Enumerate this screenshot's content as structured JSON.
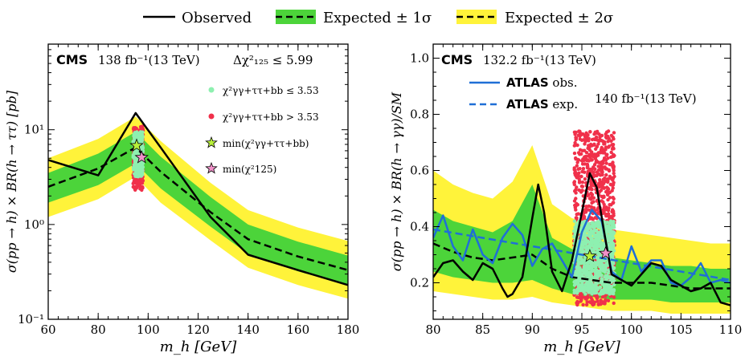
{
  "legend": {
    "observed": "Observed",
    "expected1": "Expected ± 1σ",
    "expected2": "Expected ± 2σ"
  },
  "colors": {
    "observed": "#000000",
    "expected": "#000000",
    "band1": "#4cd43a",
    "band2": "#fff33a",
    "green_points": "#8ef0b0",
    "red_points": "#f0304a",
    "atlas": "#1f6fd6",
    "star_green": "#b8f03a",
    "star_pink": "#f090c8"
  },
  "chart_data": [
    {
      "type": "line",
      "panel": "left",
      "experiment": "CMS",
      "lumi": "138 fb⁻¹(13 TeV)",
      "cut_label": "Δχ²₁₂₅ ≤ 5.99",
      "xlabel": "m_h [GeV]",
      "ylabel": "σ(pp → h) × BR(h → ττ) [pb]",
      "xlim": [
        60,
        180
      ],
      "ylim": [
        0.1,
        80
      ],
      "yscale": "log",
      "xticks": [
        60,
        80,
        100,
        120,
        140,
        160,
        180
      ],
      "yticks": [
        {
          "value": 0.1,
          "label": "10⁻¹"
        },
        {
          "value": 1,
          "label": "10⁰"
        },
        {
          "value": 10,
          "label": "10¹"
        }
      ],
      "legend_entries": [
        "χ²γγ+ττ+bb ≤ 3.53",
        "χ²γγ+ττ+bb > 3.53",
        "min(χ²γγ+ττ+bb)",
        "min(χ²125)"
      ],
      "observed": {
        "x": [
          60,
          80,
          95,
          105,
          125,
          140,
          160,
          180
        ],
        "y": [
          4.8,
          3.3,
          15.0,
          6.5,
          1.2,
          0.48,
          0.33,
          0.23
        ]
      },
      "expected": {
        "x": [
          60,
          80,
          95,
          105,
          125,
          140,
          160,
          180
        ],
        "y": [
          2.5,
          3.9,
          6.5,
          3.6,
          1.35,
          0.7,
          0.46,
          0.33
        ]
      },
      "band1": {
        "lo": [
          1.7,
          2.6,
          4.4,
          2.4,
          0.95,
          0.49,
          0.32,
          0.23
        ],
        "hi": [
          3.5,
          5.6,
          9.5,
          5.2,
          1.95,
          1.0,
          0.66,
          0.47
        ]
      },
      "band2": {
        "lo": [
          1.2,
          1.85,
          3.2,
          1.7,
          0.68,
          0.35,
          0.23,
          0.165
        ],
        "hi": [
          5.0,
          8.0,
          13.8,
          7.6,
          2.75,
          1.42,
          0.93,
          0.67
        ]
      },
      "green_region": {
        "x": [
          94,
          98
        ],
        "y": [
          3.2,
          9.5
        ]
      },
      "red_region": {
        "x": [
          94,
          98
        ],
        "y": [
          2.3,
          11.0
        ]
      },
      "star_min_combined": {
        "x": 95.4,
        "y": 6.8
      },
      "star_min_125": {
        "x": 97.4,
        "y": 5.1
      }
    },
    {
      "type": "line",
      "panel": "right",
      "experiment": "CMS",
      "lumi": "132.2 fb⁻¹(13 TeV)",
      "atlas_lumi": "140 fb⁻¹(13 TeV)",
      "xlabel": "m_h [GeV]",
      "ylabel": "σ(pp → h) × BR(h → γγ)/SM",
      "xlim": [
        80,
        110
      ],
      "ylim": [
        0.07,
        1.05
      ],
      "xticks": [
        80,
        85,
        90,
        95,
        100,
        105,
        110
      ],
      "yticks": [
        0.2,
        0.4,
        0.6,
        0.8,
        1.0
      ],
      "legend_entries": [
        {
          "bold": "ATLAS",
          "rest": " obs."
        },
        {
          "bold": "ATLAS",
          "rest": " exp."
        }
      ],
      "observed": {
        "x": [
          80,
          81,
          82,
          83,
          84,
          85,
          86,
          87,
          87.5,
          88,
          89,
          90,
          90.6,
          91.2,
          92,
          93,
          94,
          95,
          95.8,
          96.5,
          97.3,
          98,
          99,
          100,
          101,
          102,
          103,
          104,
          105,
          106,
          107,
          108,
          109,
          110
        ],
        "y": [
          0.22,
          0.27,
          0.28,
          0.24,
          0.21,
          0.27,
          0.25,
          0.18,
          0.15,
          0.16,
          0.22,
          0.43,
          0.55,
          0.45,
          0.24,
          0.17,
          0.28,
          0.45,
          0.59,
          0.54,
          0.37,
          0.23,
          0.21,
          0.19,
          0.23,
          0.27,
          0.26,
          0.21,
          0.19,
          0.17,
          0.18,
          0.2,
          0.13,
          0.12
        ]
      },
      "expected": {
        "x": [
          80,
          82,
          84,
          86,
          88,
          90,
          92,
          94,
          96,
          98,
          100,
          102,
          104,
          106,
          108,
          110
        ],
        "y": [
          0.34,
          0.31,
          0.29,
          0.28,
          0.29,
          0.3,
          0.25,
          0.22,
          0.21,
          0.2,
          0.2,
          0.2,
          0.19,
          0.18,
          0.18,
          0.18
        ]
      },
      "band1": {
        "lo": [
          0.24,
          0.22,
          0.21,
          0.2,
          0.2,
          0.21,
          0.18,
          0.16,
          0.15,
          0.14,
          0.14,
          0.14,
          0.13,
          0.13,
          0.13,
          0.13
        ],
        "hi": [
          0.46,
          0.42,
          0.4,
          0.38,
          0.42,
          0.55,
          0.36,
          0.32,
          0.3,
          0.29,
          0.28,
          0.27,
          0.26,
          0.26,
          0.25,
          0.25
        ]
      },
      "band2": {
        "lo": [
          0.17,
          0.16,
          0.15,
          0.14,
          0.14,
          0.15,
          0.13,
          0.12,
          0.11,
          0.1,
          0.1,
          0.1,
          0.09,
          0.09,
          0.09,
          0.09
        ],
        "hi": [
          0.6,
          0.55,
          0.52,
          0.5,
          0.56,
          0.69,
          0.48,
          0.43,
          0.41,
          0.39,
          0.38,
          0.37,
          0.36,
          0.35,
          0.34,
          0.34
        ]
      },
      "atlas_obs": {
        "x": [
          80,
          81,
          82,
          83,
          84,
          85,
          86,
          87,
          88,
          89,
          90,
          91,
          92,
          93,
          94,
          95,
          96,
          97,
          98,
          99,
          100,
          101,
          102,
          103,
          104,
          105,
          106,
          107,
          108,
          109,
          110
        ],
        "y": [
          0.36,
          0.44,
          0.33,
          0.28,
          0.39,
          0.3,
          0.27,
          0.36,
          0.41,
          0.37,
          0.26,
          0.32,
          0.34,
          0.28,
          0.22,
          0.38,
          0.46,
          0.42,
          0.24,
          0.21,
          0.33,
          0.24,
          0.28,
          0.28,
          0.2,
          0.19,
          0.22,
          0.27,
          0.2,
          0.21,
          0.2
        ]
      },
      "atlas_exp": {
        "x": [
          80,
          85,
          90,
          95,
          100,
          105,
          110
        ],
        "y": [
          0.39,
          0.36,
          0.33,
          0.3,
          0.27,
          0.24,
          0.21
        ]
      },
      "green_region": {
        "x": [
          94.2,
          98.3
        ],
        "y": [
          0.16,
          0.42
        ]
      },
      "red_region": {
        "x": [
          94.2,
          98.3
        ],
        "y": [
          0.12,
          0.74
        ]
      },
      "star_min_combined": {
        "x": 95.8,
        "y": 0.295
      },
      "star_min_125": {
        "x": 97.4,
        "y": 0.305
      }
    }
  ]
}
